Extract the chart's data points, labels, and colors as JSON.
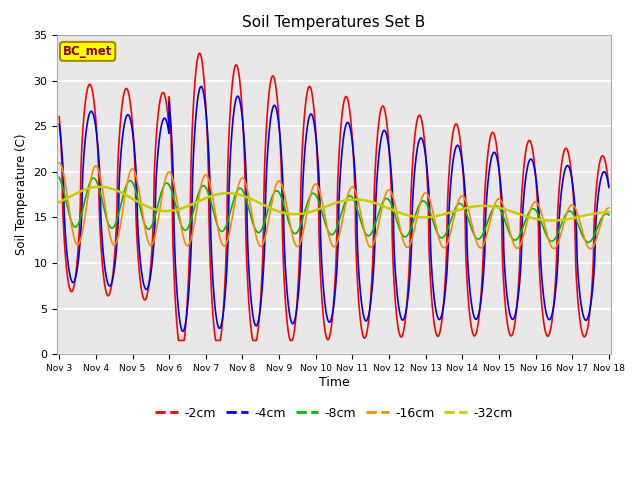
{
  "title": "Soil Temperatures Set B",
  "xlabel": "Time",
  "ylabel": "Soil Temperature (C)",
  "ylim": [
    0,
    35
  ],
  "xlim_days": [
    3,
    18
  ],
  "annotation": "BC_met",
  "annotation_color": "#8B0000",
  "annotation_bg": "#FFFF00",
  "legend_labels": [
    "-2cm",
    "-4cm",
    "-8cm",
    "-16cm",
    "-32cm"
  ],
  "legend_colors": [
    "#FF0000",
    "#0000EE",
    "#00BB00",
    "#FF8800",
    "#CCCC00"
  ],
  "line_widths": [
    1.2,
    1.2,
    1.2,
    1.2,
    1.8
  ],
  "tick_labels": [
    "Nov 3",
    "Nov 4",
    "Nov 5",
    "Nov 6",
    "Nov 7",
    "Nov 8",
    "Nov 9",
    "Nov 10",
    "Nov 11",
    "Nov 12",
    "Nov 13",
    "Nov 14",
    "Nov 15",
    "Nov 16",
    "Nov 17",
    "Nov 18"
  ],
  "tick_positions": [
    3,
    4,
    5,
    6,
    7,
    8,
    9,
    10,
    11,
    12,
    13,
    14,
    15,
    16,
    17,
    18
  ],
  "background_color": "#E8E8E8",
  "grid_color": "#FFFFFF",
  "fig_bg": "#FFFFFF",
  "ytick_positions": [
    0,
    5,
    10,
    15,
    20,
    25,
    30,
    35
  ]
}
